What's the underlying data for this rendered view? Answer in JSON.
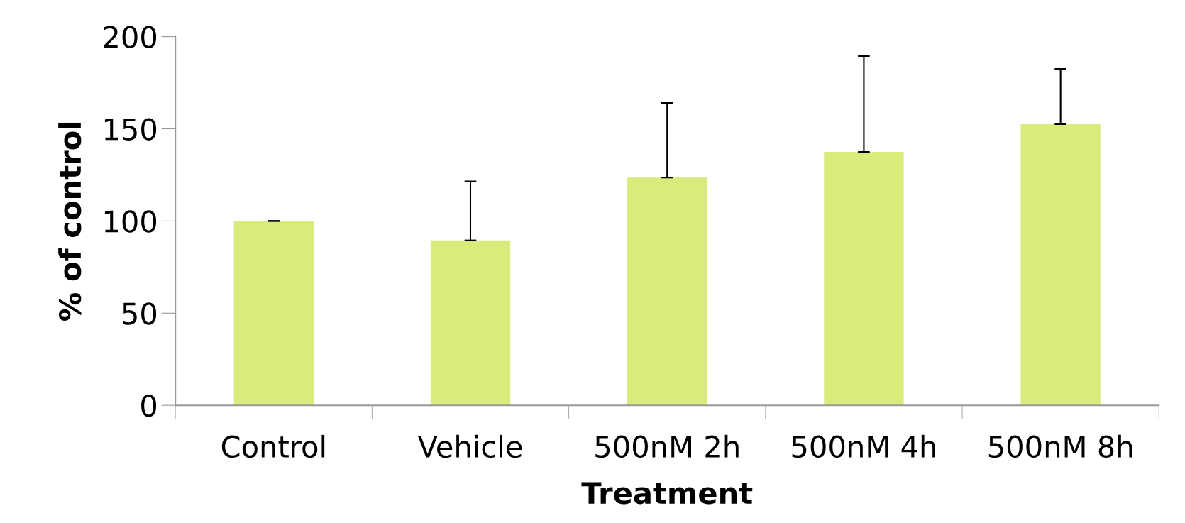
{
  "chart_data": {
    "type": "bar",
    "xlabel": "Treatment",
    "ylabel": "% of control",
    "categories": [
      "Control",
      "Vehicle",
      "500nM 2h",
      "500nM 4h",
      "500nM 8h"
    ],
    "values": [
      100,
      89.5,
      123.5,
      137.5,
      152.5
    ],
    "errors": [
      [
        100,
        100
      ],
      [
        89.5,
        121.5
      ],
      [
        123.5,
        164
      ],
      [
        137.5,
        189.5
      ],
      [
        152.5,
        182.5
      ]
    ],
    "color": "#d9eb7a",
    "ylim": [
      0,
      200
    ],
    "yticks": [
      0,
      50,
      100,
      150,
      200
    ],
    "grid": false,
    "legend": false
  }
}
